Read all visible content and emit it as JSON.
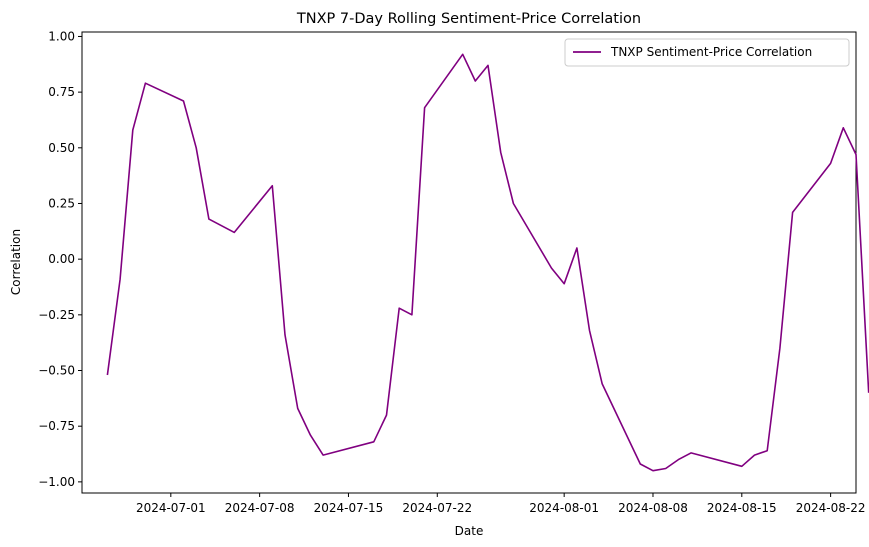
{
  "chart_data": {
    "type": "line",
    "title": "TNXP 7-Day Rolling Sentiment-Price Correlation",
    "xlabel": "Date",
    "ylabel": "Correlation",
    "ylim": [
      -1.05,
      1.02
    ],
    "xlim": [
      "2024-06-24",
      "2024-08-24"
    ],
    "x_ticks": [
      "2024-07-01",
      "2024-07-08",
      "2024-07-15",
      "2024-07-22",
      "2024-08-01",
      "2024-08-08",
      "2024-08-15",
      "2024-08-22"
    ],
    "y_ticks": [
      -1.0,
      -0.75,
      -0.5,
      -0.25,
      0.0,
      0.25,
      0.5,
      0.75,
      1.0
    ],
    "y_tick_labels": [
      "−1.00",
      "−0.75",
      "−0.50",
      "−0.25",
      "0.00",
      "0.25",
      "0.50",
      "0.75",
      "1.00"
    ],
    "grid": false,
    "legend_position": "top-right",
    "series": [
      {
        "name": "TNXP Sentiment-Price Correlation",
        "color": "#800080",
        "points": [
          [
            "2024-06-26",
            -0.52
          ],
          [
            "2024-06-27",
            -0.09
          ],
          [
            "2024-06-28",
            0.58
          ],
          [
            "2024-06-29",
            0.79
          ],
          [
            "2024-07-02",
            0.71
          ],
          [
            "2024-07-03",
            0.5
          ],
          [
            "2024-07-04",
            0.18
          ],
          [
            "2024-07-06",
            0.12
          ],
          [
            "2024-07-09",
            0.33
          ],
          [
            "2024-07-10",
            -0.34
          ],
          [
            "2024-07-11",
            -0.67
          ],
          [
            "2024-07-12",
            -0.79
          ],
          [
            "2024-07-13",
            -0.88
          ],
          [
            "2024-07-17",
            -0.82
          ],
          [
            "2024-07-18",
            -0.7
          ],
          [
            "2024-07-19",
            -0.22
          ],
          [
            "2024-07-20",
            -0.25
          ],
          [
            "2024-07-21",
            0.68
          ],
          [
            "2024-07-24",
            0.92
          ],
          [
            "2024-07-25",
            0.8
          ],
          [
            "2024-07-26",
            0.87
          ],
          [
            "2024-07-27",
            0.48
          ],
          [
            "2024-07-28",
            0.25
          ],
          [
            "2024-07-31",
            -0.04
          ],
          [
            "2024-08-01",
            -0.11
          ],
          [
            "2024-08-02",
            0.05
          ],
          [
            "2024-08-03",
            -0.32
          ],
          [
            "2024-08-04",
            -0.56
          ],
          [
            "2024-08-07",
            -0.92
          ],
          [
            "2024-08-08",
            -0.95
          ],
          [
            "2024-08-09",
            -0.94
          ],
          [
            "2024-08-10",
            -0.9
          ],
          [
            "2024-08-11",
            -0.87
          ],
          [
            "2024-08-15",
            -0.93
          ],
          [
            "2024-08-16",
            -0.88
          ],
          [
            "2024-08-17",
            -0.86
          ],
          [
            "2024-08-18",
            -0.4
          ],
          [
            "2024-08-19",
            0.21
          ],
          [
            "2024-08-22",
            0.43
          ],
          [
            "2024-08-23",
            0.59
          ],
          [
            "2024-08-24",
            0.47
          ],
          [
            "2024-08-25",
            -0.6
          ]
        ]
      }
    ]
  }
}
